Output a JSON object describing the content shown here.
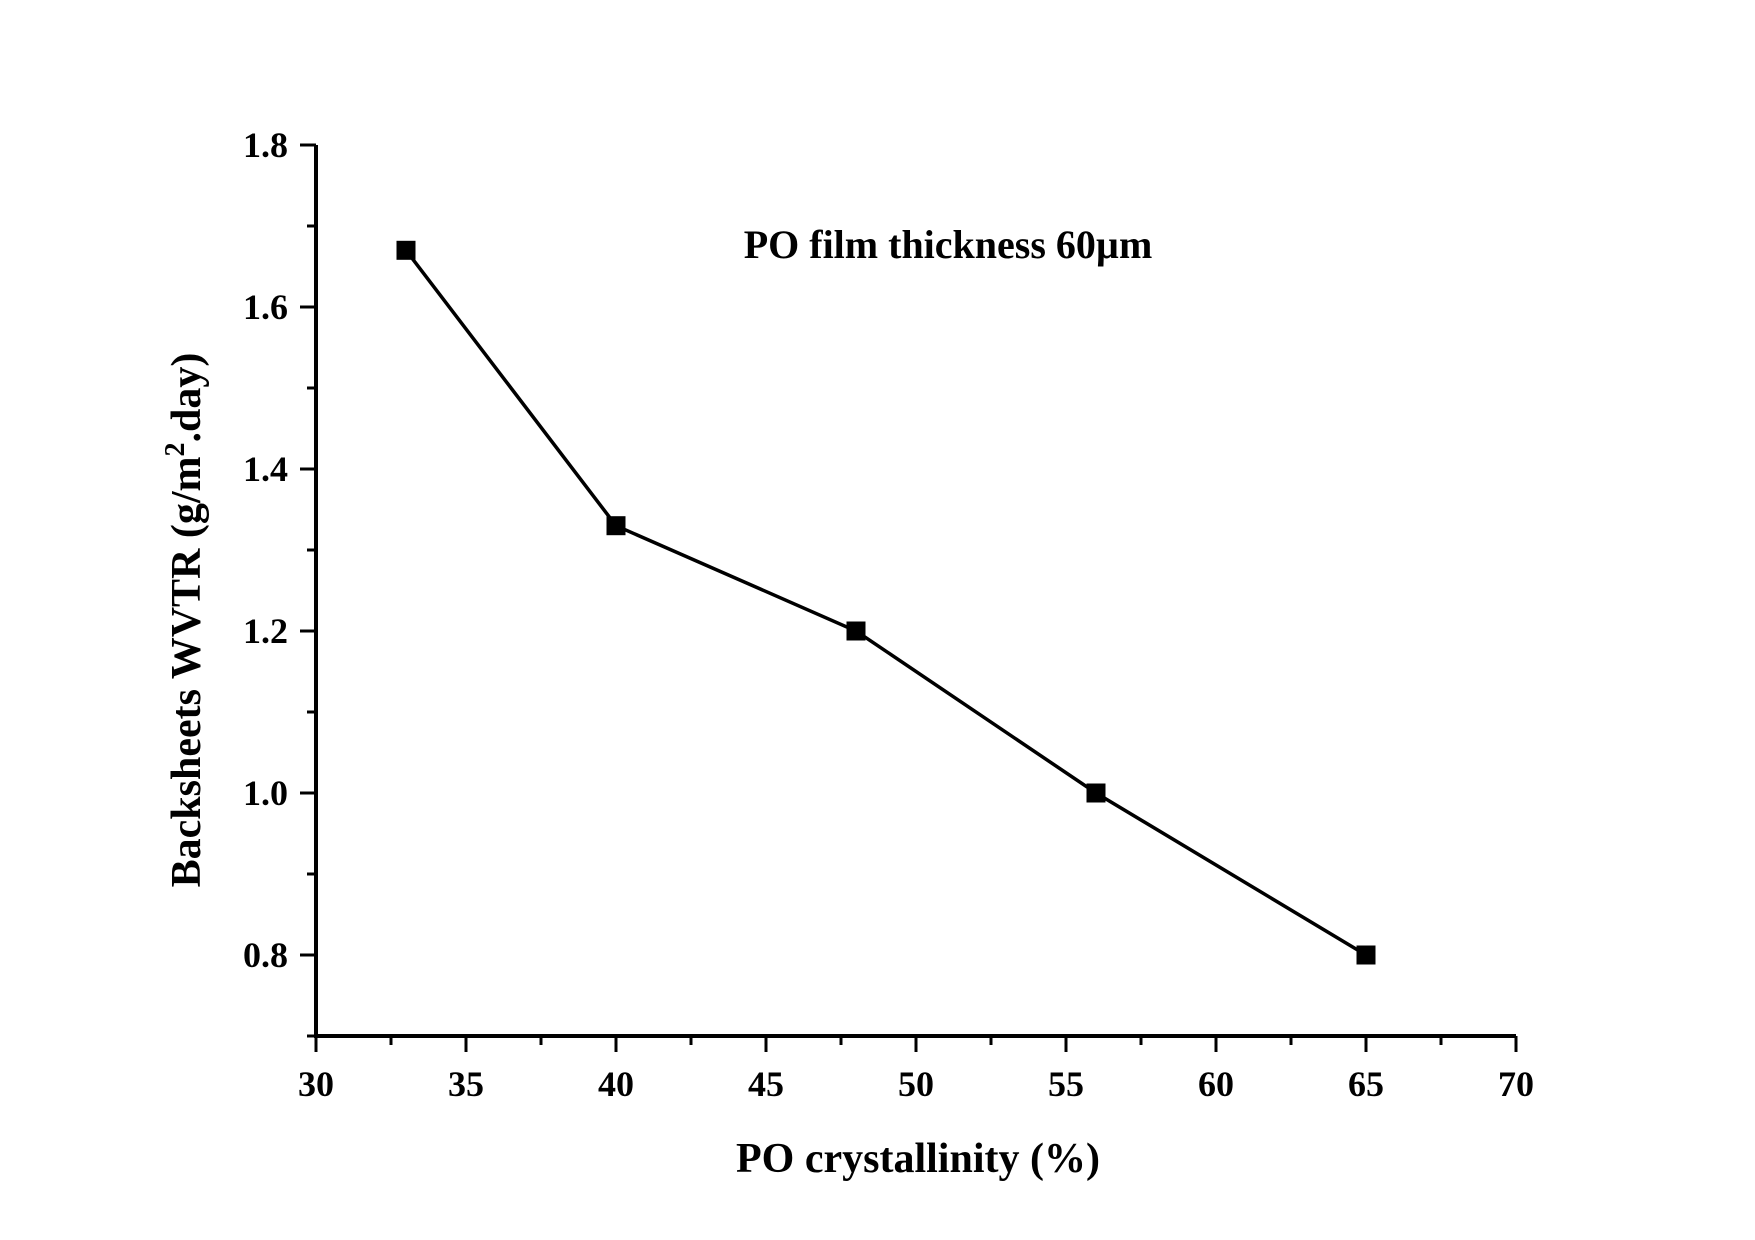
{
  "chart_data": {
    "type": "line",
    "x": [
      33,
      40,
      48,
      56,
      65
    ],
    "series": [
      {
        "values": [
          1.67,
          1.33,
          1.2,
          1.0,
          0.8
        ]
      }
    ],
    "marker": "square",
    "line_color": "#000000",
    "xlabel": "PO crystallinity (%)",
    "ylabel": {
      "main": "Backsheets  WVTR (g/m",
      "sup": "2",
      "tail": ".day)"
    },
    "annotation": "PO film thickness 60µm",
    "xlim": [
      30,
      70
    ],
    "ylim": [
      0.7,
      1.8
    ],
    "x_major_ticks": [
      30,
      35,
      40,
      45,
      50,
      55,
      60,
      65,
      70
    ],
    "x_tick_labels": [
      "30",
      "35",
      "40",
      "45",
      "50",
      "55",
      "60",
      "65",
      "70"
    ],
    "y_major_ticks": [
      0.8,
      1.0,
      1.2,
      1.4,
      1.6,
      1.8
    ],
    "y_tick_labels": [
      "0.8",
      "1.0",
      "1.2",
      "1.4",
      "1.6",
      "1.8"
    ],
    "grid": false,
    "legend": "none"
  }
}
